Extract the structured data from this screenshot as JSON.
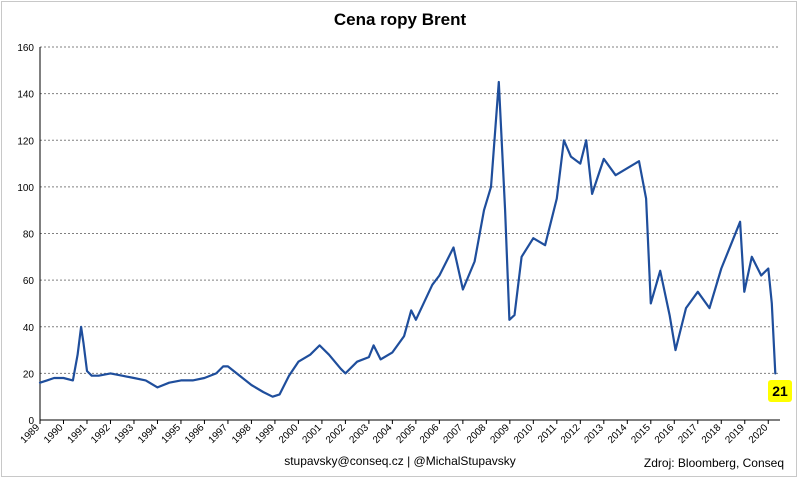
{
  "chart_data": {
    "type": "line",
    "title": "Cena ropy Brent",
    "xlabel": "",
    "ylabel": "",
    "ylim": [
      0,
      160
    ],
    "yticks": [
      0,
      20,
      40,
      60,
      80,
      100,
      120,
      140,
      160
    ],
    "xlim": [
      1989.0,
      2020.5
    ],
    "xtick_labels": [
      "1989",
      "1990",
      "1991",
      "1992",
      "1993",
      "1994",
      "1995",
      "1996",
      "1997",
      "1998",
      "1999",
      "2000",
      "2001",
      "2002",
      "2003",
      "2004",
      "2005",
      "2006",
      "2007",
      "2008",
      "2009",
      "2010",
      "2011",
      "2012",
      "2013",
      "2014",
      "2015",
      "2016",
      "2017",
      "2018",
      "2019",
      "2020"
    ],
    "grid": true,
    "legend": "none",
    "series": [
      {
        "color": "#1f4e9c",
        "x": [
          1989.0,
          1989.3,
          1989.6,
          1990.0,
          1990.4,
          1990.6,
          1990.75,
          1990.85,
          1991.0,
          1991.2,
          1991.5,
          1992.0,
          1992.5,
          1993.0,
          1993.5,
          1994.0,
          1994.5,
          1995.0,
          1995.5,
          1996.0,
          1996.5,
          1996.8,
          1997.0,
          1997.5,
          1998.0,
          1998.5,
          1998.9,
          1999.2,
          1999.6,
          2000.0,
          2000.5,
          2000.9,
          2001.3,
          2001.8,
          2002.0,
          2002.5,
          2003.0,
          2003.2,
          2003.5,
          2004.0,
          2004.5,
          2004.8,
          2005.0,
          2005.7,
          2006.0,
          2006.6,
          2007.0,
          2007.5,
          2007.9,
          2008.2,
          2008.53,
          2008.8,
          2008.98,
          2009.2,
          2009.5,
          2010.0,
          2010.5,
          2011.0,
          2011.3,
          2011.6,
          2012.0,
          2012.25,
          2012.5,
          2013.0,
          2013.5,
          2014.0,
          2014.5,
          2014.8,
          2015.0,
          2015.4,
          2015.8,
          2016.05,
          2016.5,
          2017.0,
          2017.5,
          2018.0,
          2018.4,
          2018.8,
          2018.98,
          2019.3,
          2019.7,
          2020.0,
          2020.15,
          2020.3
        ],
        "y": [
          16,
          17,
          18,
          18,
          17,
          28,
          40,
          33,
          21,
          19,
          19,
          20,
          19,
          18,
          17,
          14,
          16,
          17,
          17,
          18,
          20,
          23,
          23,
          19,
          15,
          12,
          10,
          11,
          19,
          25,
          28,
          32,
          28,
          22,
          20,
          25,
          27,
          32,
          26,
          29,
          36,
          47,
          43,
          58,
          62,
          74,
          56,
          68,
          90,
          100,
          145,
          90,
          43,
          45,
          70,
          78,
          75,
          95,
          120,
          113,
          110,
          120,
          97,
          112,
          105,
          108,
          111,
          95,
          50,
          64,
          45,
          30,
          48,
          55,
          48,
          65,
          75,
          85,
          55,
          70,
          62,
          65,
          50,
          20
        ]
      }
    ],
    "annotations": {
      "last_value_badge": "21"
    }
  },
  "footer": {
    "contact": "stupavsky@conseq.cz  |  @MichalStupavsky",
    "source": "Zdroj: Bloomberg, Conseq"
  },
  "colors": {
    "line": "#1f4e9c",
    "badge": "#ffff00",
    "grid": "#808080"
  }
}
